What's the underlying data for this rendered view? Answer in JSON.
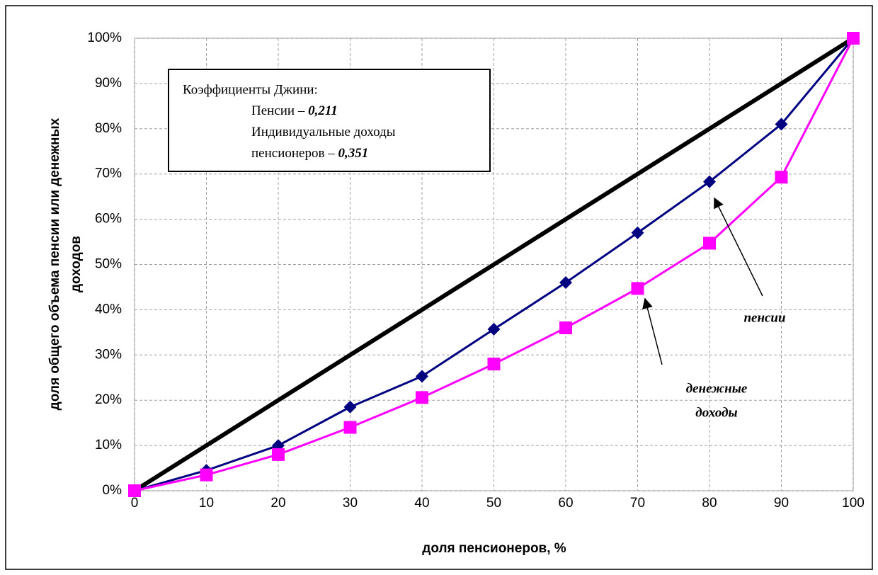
{
  "chart_data": {
    "type": "line",
    "xlabel": "доля пенсионеров, %",
    "ylabel": [
      "доля общего объема пенсии или денежных",
      "доходов"
    ],
    "x": [
      0,
      10,
      20,
      30,
      40,
      50,
      60,
      70,
      80,
      90,
      100
    ],
    "series": [
      {
        "color": "#000000",
        "marker": "none",
        "values": [
          0,
          10,
          20,
          30,
          40,
          50,
          60,
          70,
          80,
          90,
          100
        ]
      },
      {
        "color": "#000080",
        "marker": "diamond",
        "values": [
          0,
          4.5,
          10,
          18.5,
          25.3,
          35.7,
          46,
          57,
          68.3,
          81,
          100
        ]
      },
      {
        "color": "#ff00ff",
        "marker": "square",
        "values": [
          0,
          3.5,
          8,
          14,
          20.6,
          28,
          36,
          44.7,
          54.7,
          69.3,
          100
        ]
      }
    ],
    "xlim": [
      0,
      100
    ],
    "xticks": [
      0,
      10,
      20,
      30,
      40,
      50,
      60,
      70,
      80,
      90,
      100
    ],
    "ylim": [
      0,
      100
    ],
    "yticks": [
      {
        "value": 0,
        "label": "0%"
      },
      {
        "value": 10,
        "label": "10%"
      },
      {
        "value": 20,
        "label": "20%"
      },
      {
        "value": 30,
        "label": "30%"
      },
      {
        "value": 40,
        "label": "40%"
      },
      {
        "value": 50,
        "label": "50%"
      },
      {
        "value": 60,
        "label": "60%"
      },
      {
        "value": 70,
        "label": "70%"
      },
      {
        "value": 80,
        "label": "80%"
      },
      {
        "value": 90,
        "label": "90%"
      },
      {
        "value": 100,
        "label": "100%"
      }
    ],
    "grid": true,
    "info_box": {
      "title": "Коэффициенты Джини:",
      "lines": [
        {
          "text": "Пенсии – ",
          "value": "0,211"
        },
        {
          "text": "Индивидуальные доходы"
        },
        {
          "text": "пенсионеров – ",
          "value": "0,351"
        }
      ]
    },
    "annotations": [
      [
        "пенсии"
      ],
      [
        "денежные",
        "доходы"
      ]
    ]
  }
}
